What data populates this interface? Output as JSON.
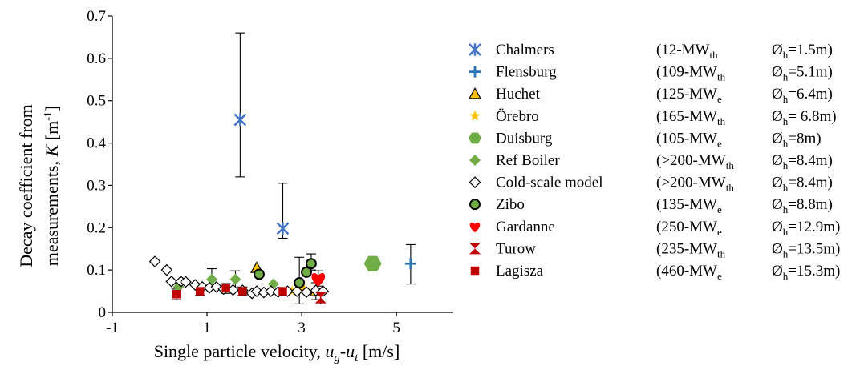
{
  "chart_data": {
    "type": "scatter",
    "xlabel": {
      "main": "Single particle velocity, ",
      "u1": "u",
      "s1": "g",
      "dash": "-",
      "u2": "u",
      "s2": "t",
      "unit": " [m/s]"
    },
    "ylabel": {
      "line1": "Decay coefficient from",
      "line2a": "measurements, ",
      "line2k": "K",
      "line2b": " [m",
      "line2sup": "-1",
      "line2c": "]"
    },
    "xlim": [
      -1,
      6.2
    ],
    "ylim": [
      0,
      0.7
    ],
    "xticks": [
      -1,
      1,
      3,
      5
    ],
    "xtick_labels": [
      "-1",
      "1",
      "3",
      "5"
    ],
    "yticks": [
      0,
      0.1,
      0.2,
      0.3,
      0.4,
      0.5,
      0.6,
      0.7
    ],
    "ytick_labels": [
      "0",
      "0.1",
      "0.2",
      "0.3",
      "0.4",
      "0.5",
      "0.6",
      "0.7"
    ],
    "grid": false,
    "legend_position": "right",
    "series": [
      {
        "name": "Chalmers",
        "info": {
          "a": "(12-MW",
          "sub": "th",
          "b": "Ø",
          "bsub": "h",
          "c": "=1.5m)"
        },
        "marker": "x",
        "color": "#4472C4",
        "points": [
          {
            "x": 1.7,
            "y": 0.455,
            "ylo": 0.32,
            "yhi": 0.66
          },
          {
            "x": 2.6,
            "y": 0.198,
            "ylo": 0.175,
            "yhi": 0.305
          }
        ]
      },
      {
        "name": "Flensburg",
        "info": {
          "a": "(109-MW",
          "sub": "th",
          "b": "Ø",
          "bsub": "h",
          "c": "=5.1m)"
        },
        "marker": "plus",
        "color": "#2E75B6",
        "points": [
          {
            "x": 5.3,
            "y": 0.115,
            "ylo": 0.067,
            "yhi": 0.16
          }
        ]
      },
      {
        "name": "Huchet",
        "info": {
          "a": "(125-MW",
          "sub": "e",
          "b": "Ø",
          "bsub": "h",
          "c": "=6.4m)"
        },
        "marker": "triangle",
        "color": "#FFC000",
        "points": [
          {
            "x": 2.05,
            "y": 0.105
          },
          {
            "x": 3.3,
            "y": 0.05,
            "ylo": 0.03,
            "yhi": 0.07
          }
        ]
      },
      {
        "name": "Örebro",
        "info": {
          "a": "(165-MW",
          "sub": "th",
          "b": "Ø",
          "bsub": "h",
          "c": "= 6.8m)"
        },
        "marker": "star",
        "color": "#FFC000",
        "points": [
          {
            "x": 2.8,
            "y": 0.05
          },
          {
            "x": 2.95,
            "y": 0.06
          },
          {
            "x": 3.05,
            "y": 0.055
          }
        ]
      },
      {
        "name": "Duisburg",
        "info": {
          "a": "(105-MW",
          "sub": "e",
          "b": "Ø",
          "bsub": "h",
          "c": "=8m)"
        },
        "marker": "hexagon",
        "color": "#70AD47",
        "points": [
          {
            "x": 4.5,
            "y": 0.115
          }
        ]
      },
      {
        "name": "Ref Boiler",
        "info": {
          "a": "(>200-MW",
          "sub": "th",
          "b": "Ø",
          "bsub": "h",
          "c": "=8.4m)"
        },
        "marker": "diamond",
        "color": "#70AD47",
        "points": [
          {
            "x": 0.4,
            "y": 0.06
          },
          {
            "x": 1.1,
            "y": 0.078,
            "ylo": 0.055,
            "yhi": 0.103
          },
          {
            "x": 1.6,
            "y": 0.078,
            "ylo": 0.058,
            "yhi": 0.098
          },
          {
            "x": 2.4,
            "y": 0.067
          }
        ]
      },
      {
        "name": "Cold-scale model",
        "info": {
          "a": "(>200-MW",
          "sub": "th",
          "b": "Ø",
          "bsub": "h",
          "c": "=8.4m)"
        },
        "marker": "diamond-open",
        "color": "#000000",
        "points": [
          {
            "x": -0.1,
            "y": 0.12
          },
          {
            "x": 0.15,
            "y": 0.1
          },
          {
            "x": 0.25,
            "y": 0.073
          },
          {
            "x": 0.45,
            "y": 0.073
          },
          {
            "x": 0.55,
            "y": 0.072
          },
          {
            "x": 0.75,
            "y": 0.065
          },
          {
            "x": 0.9,
            "y": 0.06
          },
          {
            "x": 1.05,
            "y": 0.058
          },
          {
            "x": 1.2,
            "y": 0.06
          },
          {
            "x": 1.35,
            "y": 0.055
          },
          {
            "x": 1.55,
            "y": 0.053
          },
          {
            "x": 1.75,
            "y": 0.052
          },
          {
            "x": 1.95,
            "y": 0.045
          },
          {
            "x": 2.05,
            "y": 0.05
          },
          {
            "x": 2.2,
            "y": 0.047
          },
          {
            "x": 2.35,
            "y": 0.05
          },
          {
            "x": 2.5,
            "y": 0.048
          },
          {
            "x": 2.7,
            "y": 0.05
          },
          {
            "x": 2.9,
            "y": 0.05
          },
          {
            "x": 3.1,
            "y": 0.048
          },
          {
            "x": 3.3,
            "y": 0.052
          },
          {
            "x": 3.45,
            "y": 0.05
          }
        ]
      },
      {
        "name": "Zibo",
        "info": {
          "a": "(135-MW",
          "sub": "e",
          "b": "Ø",
          "bsub": "h",
          "c": "=8.8m)"
        },
        "marker": "circle",
        "color": "#70AD47",
        "points": [
          {
            "x": 2.1,
            "y": 0.09
          },
          {
            "x": 2.95,
            "y": 0.07,
            "ylo": 0.02,
            "yhi": 0.13
          },
          {
            "x": 3.1,
            "y": 0.095
          },
          {
            "x": 3.2,
            "y": 0.115,
            "ylo": 0.1,
            "yhi": 0.138
          }
        ]
      },
      {
        "name": "Gardanne",
        "info": {
          "a": "(250-MW",
          "sub": "e",
          "b": "Ø",
          "bsub": "h",
          "c": "=12.9m)"
        },
        "marker": "heart",
        "color": "#FF0000",
        "points": [
          {
            "x": 3.35,
            "y": 0.08,
            "ylo": 0.062,
            "yhi": 0.098
          }
        ]
      },
      {
        "name": "Turow",
        "info": {
          "a": "(235-MW",
          "sub": "th",
          "b": "Ø",
          "bsub": "h",
          "c": "=13.5m)"
        },
        "marker": "hourglass",
        "color": "#C00000",
        "points": [
          {
            "x": 3.4,
            "y": 0.035,
            "ylo": 0.02,
            "yhi": 0.05
          }
        ]
      },
      {
        "name": "Lagisza",
        "info": {
          "a": "(460-MW",
          "sub": "e",
          "b": "Ø",
          "bsub": "h",
          "c": "=15.3m)"
        },
        "marker": "square",
        "color": "#C00000",
        "points": [
          {
            "x": 0.35,
            "y": 0.043,
            "ylo": 0.03,
            "yhi": 0.055
          },
          {
            "x": 0.85,
            "y": 0.05,
            "ylo": 0.04,
            "yhi": 0.06
          },
          {
            "x": 1.4,
            "y": 0.057,
            "ylo": 0.045,
            "yhi": 0.068
          },
          {
            "x": 1.75,
            "y": 0.05,
            "ylo": 0.04,
            "yhi": 0.06
          },
          {
            "x": 2.6,
            "y": 0.05,
            "ylo": 0.04,
            "yhi": 0.058
          }
        ]
      }
    ]
  }
}
